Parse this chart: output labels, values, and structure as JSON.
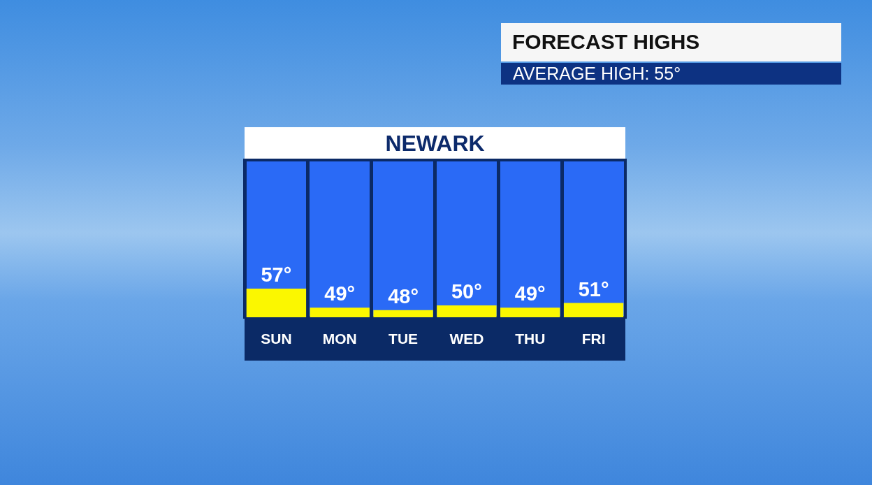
{
  "chart_data": {
    "type": "bar",
    "title": "FORECAST HIGHS",
    "subtitle": "AVERAGE HIGH: 55°",
    "annotations": [
      "NEWARK"
    ],
    "categories": [
      "SUN",
      "MON",
      "TUE",
      "WED",
      "THU",
      "FRI"
    ],
    "values": [
      57,
      49,
      48,
      50,
      49,
      51
    ],
    "value_labels": [
      "57°",
      "49°",
      "48°",
      "50°",
      "49°",
      "51°"
    ],
    "color": "#fbf700",
    "ylim": [
      45,
      111
    ],
    "tick_labels": "x",
    "grid": "x"
  }
}
